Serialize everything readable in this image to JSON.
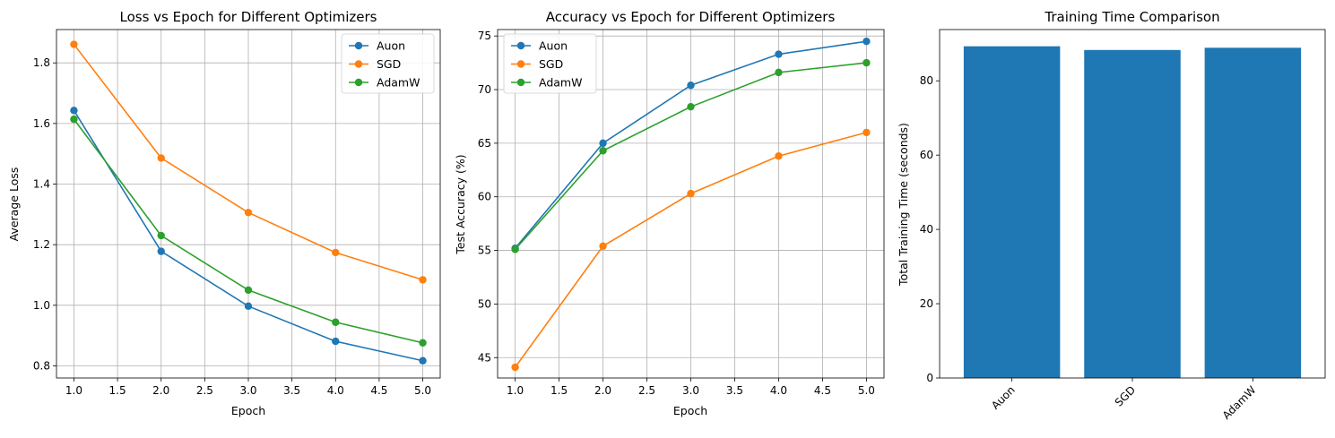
{
  "colors": {
    "Auon": "#1f77b4",
    "SGD": "#ff7f0e",
    "AdamW": "#2ca02c",
    "bar": "#1f77b4",
    "grid": "#b0b0b0"
  },
  "chart_data": [
    {
      "type": "line",
      "title": "Loss vs Epoch for Different Optimizers",
      "xlabel": "Epoch",
      "ylabel": "Average Loss",
      "x": [
        1,
        2,
        3,
        4,
        5
      ],
      "xlim": [
        0.8,
        5.2
      ],
      "ylim": [
        0.76,
        1.91
      ],
      "xticks": [
        1.0,
        1.5,
        2.0,
        2.5,
        3.0,
        3.5,
        4.0,
        4.5,
        5.0
      ],
      "xtick_labels": [
        "1.0",
        "1.5",
        "2.0",
        "2.5",
        "3.0",
        "3.5",
        "4.0",
        "4.5",
        "5.0"
      ],
      "yticks": [
        0.8,
        1.0,
        1.2,
        1.4,
        1.6,
        1.8
      ],
      "ytick_labels": [
        "0.8",
        "1.0",
        "1.2",
        "1.4",
        "1.6",
        "1.8"
      ],
      "grid": true,
      "legend": "top-right",
      "series": [
        {
          "name": "Auon",
          "values": [
            1.643,
            1.178,
            0.997,
            0.881,
            0.817
          ]
        },
        {
          "name": "SGD",
          "values": [
            1.861,
            1.486,
            1.306,
            1.174,
            1.084
          ]
        },
        {
          "name": "AdamW",
          "values": [
            1.614,
            1.23,
            1.05,
            0.944,
            0.876
          ]
        }
      ]
    },
    {
      "type": "line",
      "title": "Accuracy vs Epoch for Different Optimizers",
      "xlabel": "Epoch",
      "ylabel": "Test Accuracy (%)",
      "x": [
        1,
        2,
        3,
        4,
        5
      ],
      "xlim": [
        0.8,
        5.2
      ],
      "ylim": [
        43.1,
        75.6
      ],
      "xticks": [
        1.0,
        1.5,
        2.0,
        2.5,
        3.0,
        3.5,
        4.0,
        4.5,
        5.0
      ],
      "xtick_labels": [
        "1.0",
        "1.5",
        "2.0",
        "2.5",
        "3.0",
        "3.5",
        "4.0",
        "4.5",
        "5.0"
      ],
      "yticks": [
        45,
        50,
        55,
        60,
        65,
        70,
        75
      ],
      "ytick_labels": [
        "45",
        "50",
        "55",
        "60",
        "65",
        "70",
        "75"
      ],
      "grid": true,
      "legend": "top-left",
      "series": [
        {
          "name": "Auon",
          "values": [
            55.2,
            65.0,
            70.4,
            73.3,
            74.5
          ]
        },
        {
          "name": "SGD",
          "values": [
            44.1,
            55.4,
            60.3,
            63.8,
            66.0
          ]
        },
        {
          "name": "AdamW",
          "values": [
            55.1,
            64.3,
            68.4,
            71.6,
            72.5
          ]
        }
      ]
    },
    {
      "type": "bar",
      "title": "Training Time Comparison",
      "xlabel": "",
      "ylabel": "Total Training Time (seconds)",
      "categories": [
        "Auon",
        "SGD",
        "AdamW"
      ],
      "values": [
        89.3,
        88.3,
        88.9
      ],
      "ylim": [
        0,
        93.8
      ],
      "yticks": [
        0,
        20,
        40,
        60,
        80
      ],
      "ytick_labels": [
        "0",
        "20",
        "40",
        "60",
        "80"
      ],
      "grid": false
    }
  ]
}
